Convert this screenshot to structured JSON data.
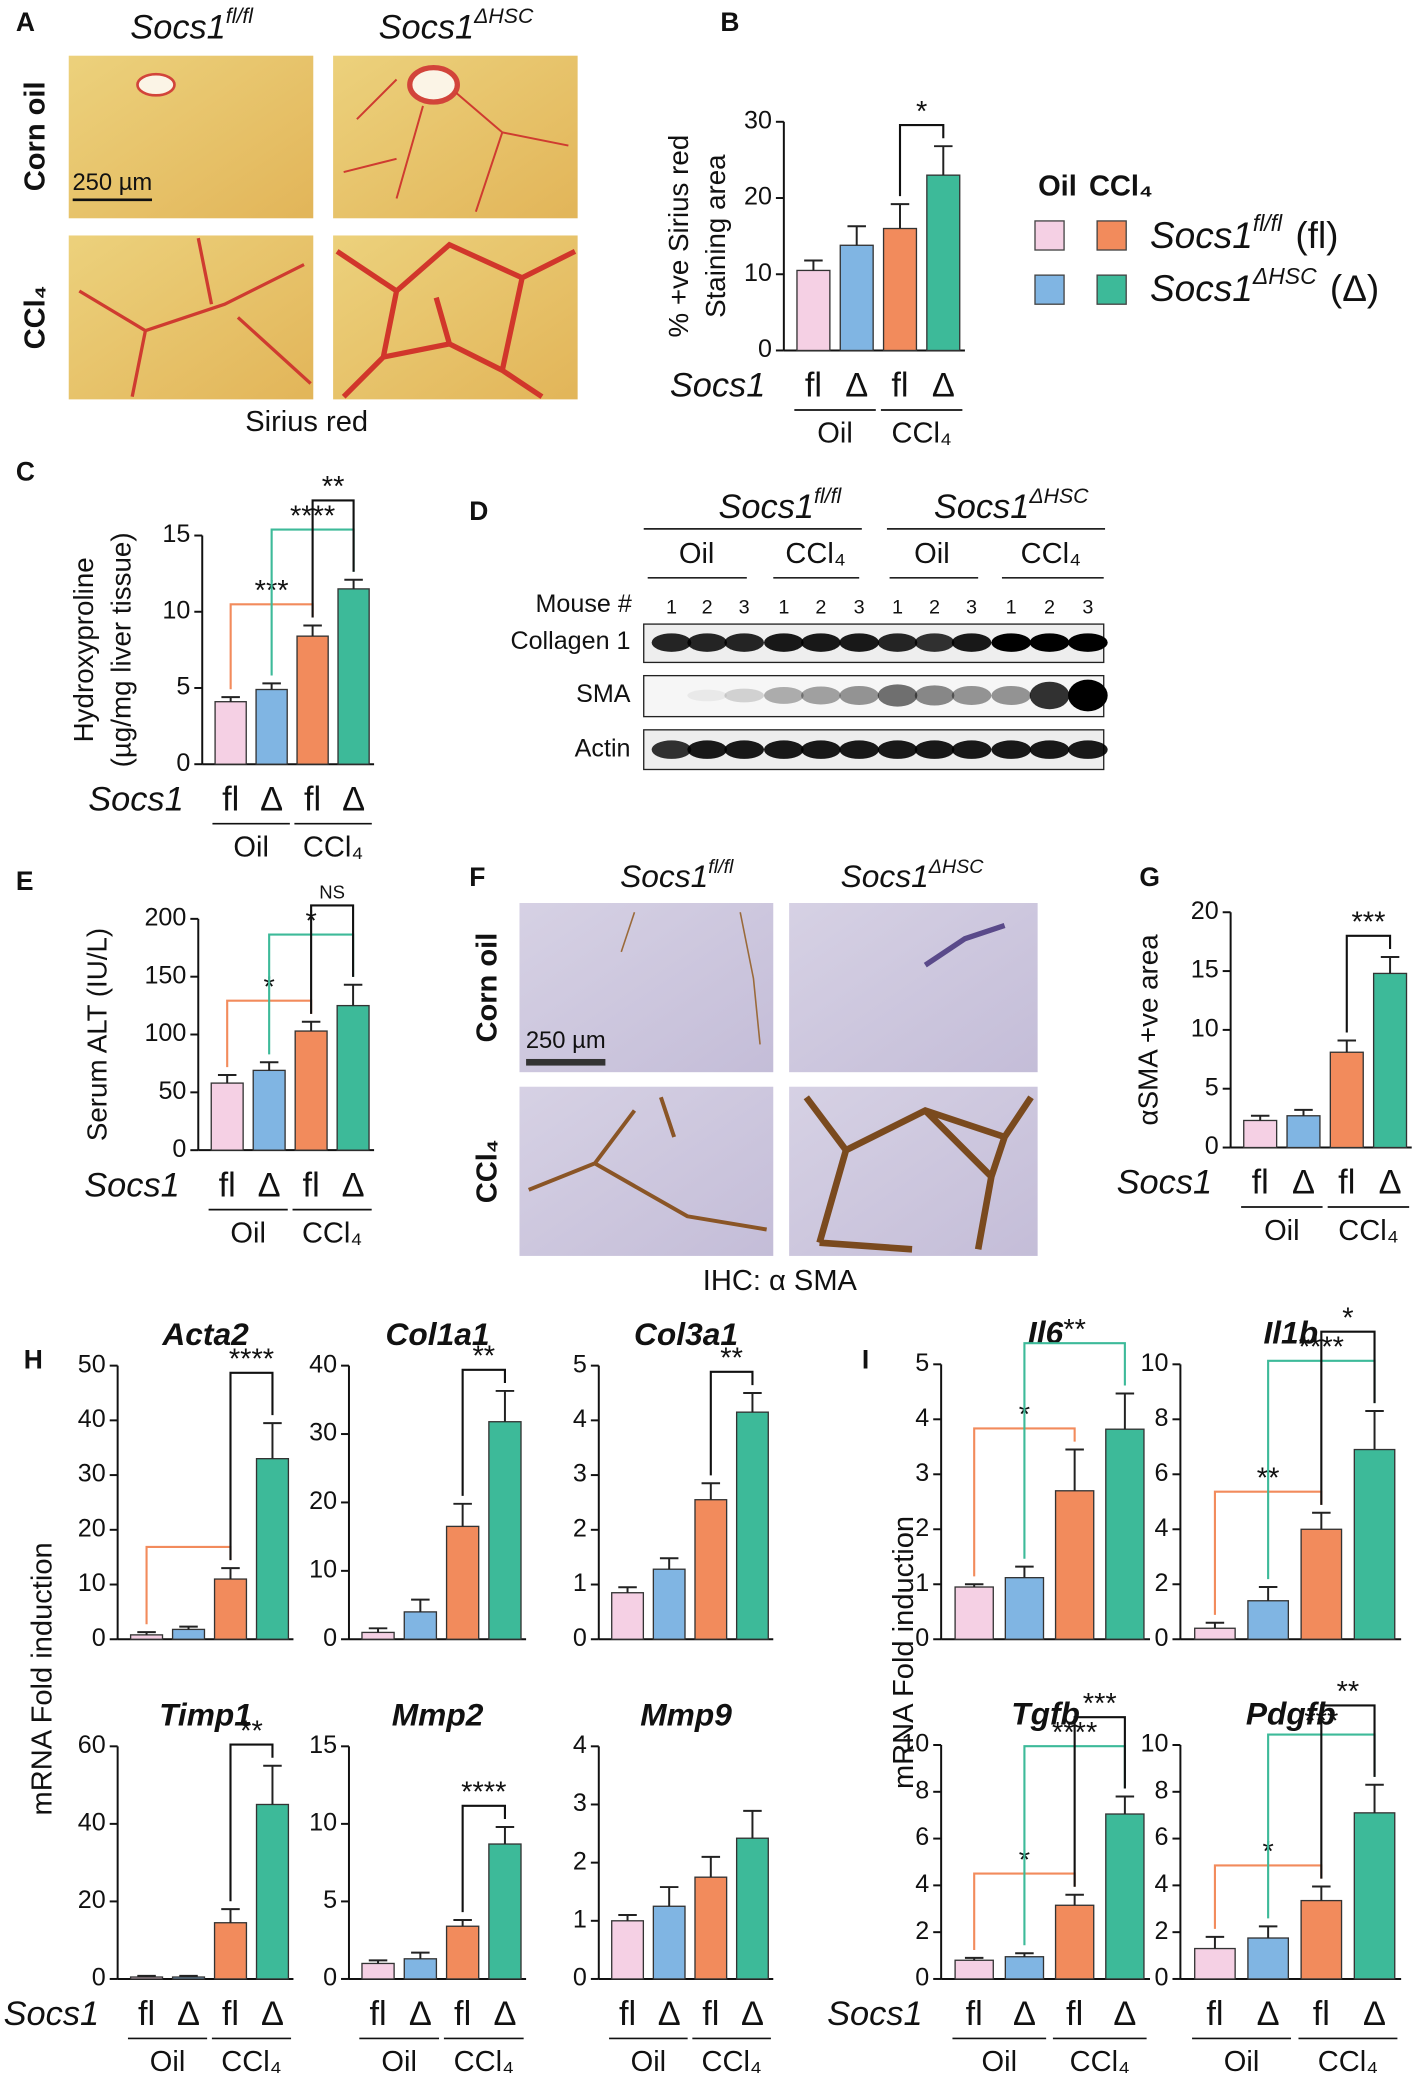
{
  "figure": {
    "panel_labels": [
      "A",
      "B",
      "C",
      "D",
      "E",
      "F",
      "G",
      "H",
      "I"
    ],
    "genotypes": [
      {
        "gene": "Socs1",
        "sup": "fl/fl",
        "abbr": "(fl)"
      },
      {
        "gene": "Socs1",
        "sup": "ΔHSC",
        "abbr": "(Δ)"
      }
    ],
    "treatments": [
      "Corn oil",
      "CCl₄"
    ],
    "scale_bar": "250 µm",
    "a_caption": "Sirius red",
    "legend_headers": [
      "Oil",
      "CCl₄"
    ],
    "blot": {
      "groups": [
        "Oil",
        "CCl₄",
        "Oil",
        "CCl₄"
      ],
      "mouse_label": "Mouse #",
      "mouse_numbers": [
        "1",
        "2",
        "3",
        "1",
        "2",
        "3",
        "1",
        "2",
        "3",
        "1",
        "2",
        "3"
      ],
      "rows": [
        "Collagen 1",
        "SMA",
        "Actin"
      ]
    },
    "f_caption": "IHC:  α SMA",
    "mrna_ylabel": "mRNA Fold induction"
  },
  "chart_data": [
    {
      "type": "bar",
      "ylabel": [
        "% +ve Sirius red",
        "Staining area"
      ],
      "xlabel": "Socs1",
      "categories": [
        "fl",
        "Δ",
        "fl",
        "Δ"
      ],
      "groups": [
        "Oil",
        "CCl₄"
      ],
      "values": [
        10.5,
        13.8,
        16,
        23
      ],
      "errors": [
        1.3,
        2.5,
        3.2,
        3.8
      ],
      "colors": [
        "#f5d0e4",
        "#80b5e3",
        "#f28b5c",
        "#3dba99"
      ],
      "ylim": [
        0,
        30
      ],
      "yticks": [
        0,
        10,
        20,
        30
      ],
      "annotations": [
        {
          "text": "*",
          "from": 2,
          "to": 3,
          "color": "#111111"
        }
      ]
    },
    {
      "type": "bar",
      "ylabel": [
        "Hydroxyproline",
        "(µg/mg liver tissue)"
      ],
      "xlabel": "Socs1",
      "categories": [
        "fl",
        "Δ",
        "fl",
        "Δ"
      ],
      "groups": [
        "Oil",
        "CCl₄"
      ],
      "values": [
        4.1,
        4.9,
        8.4,
        11.5
      ],
      "errors": [
        0.3,
        0.4,
        0.7,
        0.6
      ],
      "colors": [
        "#f5d0e4",
        "#80b5e3",
        "#f28b5c",
        "#3dba99"
      ],
      "ylim": [
        0,
        15
      ],
      "yticks": [
        0,
        5,
        10,
        15
      ],
      "annotations": [
        {
          "text": "***",
          "from": 0,
          "to": 2,
          "color": "#f28b5c"
        },
        {
          "text": "****",
          "from": 1,
          "to": 3,
          "color": "#3dba99"
        },
        {
          "text": "**",
          "from": 2,
          "to": 3,
          "color": "#111111"
        }
      ]
    },
    {
      "type": "bar",
      "ylabel": [
        "Serum ALT (IU/L)"
      ],
      "xlabel": "Socs1",
      "categories": [
        "fl",
        "Δ",
        "fl",
        "Δ"
      ],
      "groups": [
        "Oil",
        "CCl₄"
      ],
      "values": [
        58,
        69,
        103,
        125
      ],
      "errors": [
        7,
        7,
        8,
        18
      ],
      "colors": [
        "#f5d0e4",
        "#80b5e3",
        "#f28b5c",
        "#3dba99"
      ],
      "ylim": [
        0,
        200
      ],
      "yticks": [
        0,
        50,
        100,
        150,
        200
      ],
      "annotations": [
        {
          "text": "*",
          "from": 0,
          "to": 2,
          "color": "#f28b5c"
        },
        {
          "text": "*",
          "from": 1,
          "to": 3,
          "color": "#3dba99"
        },
        {
          "text": "NS",
          "from": 2,
          "to": 3,
          "color": "#111111"
        }
      ]
    },
    {
      "type": "bar",
      "ylabel": [
        "αSMA    +ve area"
      ],
      "xlabel": "Socs1",
      "categories": [
        "fl",
        "Δ",
        "fl",
        "Δ"
      ],
      "groups": [
        "Oil",
        "CCl₄"
      ],
      "values": [
        2.3,
        2.7,
        8.1,
        14.8
      ],
      "errors": [
        0.4,
        0.5,
        1,
        1.4
      ],
      "colors": [
        "#f5d0e4",
        "#80b5e3",
        "#f28b5c",
        "#3dba99"
      ],
      "ylim": [
        0,
        20
      ],
      "yticks": [
        0,
        5,
        10,
        15,
        20
      ],
      "annotations": [
        {
          "text": "***",
          "from": 2,
          "to": 3,
          "color": "#111111"
        }
      ]
    },
    {
      "type": "bar",
      "title": "Acta2",
      "categories": [
        null,
        null,
        null,
        null
      ],
      "values": [
        0.8,
        1.8,
        11,
        33
      ],
      "errors": [
        0.5,
        0.5,
        2,
        6.5
      ],
      "colors": [
        "#f5d0e4",
        "#80b5e3",
        "#f28b5c",
        "#3dba99"
      ],
      "ylim": [
        0,
        50
      ],
      "yticks": [
        0,
        10,
        20,
        30,
        40,
        50
      ],
      "annotations": [
        {
          "from": 0,
          "to": 2,
          "color": "#f28b5c"
        },
        {
          "text": "****",
          "from": 2,
          "to": 3,
          "color": "#111111"
        }
      ]
    },
    {
      "type": "bar",
      "title": "Col1a1",
      "categories": [
        null,
        null,
        null,
        null
      ],
      "values": [
        1,
        4,
        16.5,
        31.8
      ],
      "errors": [
        0.6,
        1.8,
        3.3,
        4.5
      ],
      "colors": [
        "#f5d0e4",
        "#80b5e3",
        "#f28b5c",
        "#3dba99"
      ],
      "ylim": [
        0,
        40
      ],
      "yticks": [
        0,
        10,
        20,
        30,
        40
      ],
      "annotations": [
        {
          "text": "**",
          "from": 2,
          "to": 3,
          "color": "#111111"
        }
      ]
    },
    {
      "type": "bar",
      "title": "Col3a1",
      "categories": [
        null,
        null,
        null,
        null
      ],
      "values": [
        0.85,
        1.28,
        2.55,
        4.15
      ],
      "errors": [
        0.1,
        0.2,
        0.3,
        0.35
      ],
      "colors": [
        "#f5d0e4",
        "#80b5e3",
        "#f28b5c",
        "#3dba99"
      ],
      "ylim": [
        0,
        5
      ],
      "yticks": [
        0,
        1,
        2,
        3,
        4,
        5
      ],
      "annotations": [
        {
          "text": "**",
          "from": 2,
          "to": 3,
          "color": "#111111"
        }
      ]
    },
    {
      "type": "bar",
      "title": "Timp1",
      "xlabel": "Socs1",
      "categories": [
        "fl",
        "Δ",
        "fl",
        "Δ"
      ],
      "groups": [
        "Oil",
        "CCl₄"
      ],
      "values": [
        0.5,
        0.5,
        14.5,
        45
      ],
      "errors": [
        0.3,
        0.3,
        3.5,
        10
      ],
      "colors": [
        "#f5d0e4",
        "#80b5e3",
        "#f28b5c",
        "#3dba99"
      ],
      "ylim": [
        0,
        60
      ],
      "yticks": [
        0,
        20,
        40,
        60
      ],
      "annotations": [
        {
          "text": "**",
          "from": 2,
          "to": 3,
          "color": "#111111"
        }
      ]
    },
    {
      "type": "bar",
      "title": "Mmp2",
      "categories": [
        "fl",
        "Δ",
        "fl",
        "Δ"
      ],
      "groups": [
        "Oil",
        "CCl₄"
      ],
      "values": [
        1,
        1.3,
        3.4,
        8.7
      ],
      "errors": [
        0.2,
        0.4,
        0.4,
        1.1
      ],
      "colors": [
        "#f5d0e4",
        "#80b5e3",
        "#f28b5c",
        "#3dba99"
      ],
      "ylim": [
        0,
        15
      ],
      "yticks": [
        0,
        5,
        10,
        15
      ],
      "annotations": [
        {
          "text": "****",
          "from": 2,
          "to": 3,
          "color": "#111111"
        }
      ]
    },
    {
      "type": "bar",
      "title": "Mmp9",
      "categories": [
        "fl",
        "Δ",
        "fl",
        "Δ"
      ],
      "groups": [
        "Oil",
        "CCl₄"
      ],
      "values": [
        1,
        1.25,
        1.75,
        2.42
      ],
      "errors": [
        0.1,
        0.33,
        0.35,
        0.47
      ],
      "colors": [
        "#f5d0e4",
        "#80b5e3",
        "#f28b5c",
        "#3dba99"
      ],
      "ylim": [
        0,
        4
      ],
      "yticks": [
        0,
        1,
        2,
        3,
        4
      ]
    },
    {
      "type": "bar",
      "title": "Il6",
      "categories": [
        null,
        null,
        null,
        null
      ],
      "values": [
        0.95,
        1.12,
        2.7,
        3.82
      ],
      "errors": [
        0.05,
        0.2,
        0.75,
        0.65
      ],
      "colors": [
        "#f5d0e4",
        "#80b5e3",
        "#f28b5c",
        "#3dba99"
      ],
      "ylim": [
        0,
        5
      ],
      "yticks": [
        0,
        1,
        2,
        3,
        4,
        5
      ],
      "annotations": [
        {
          "text": "*",
          "from": 0,
          "to": 2,
          "color": "#f28b5c"
        },
        {
          "text": "**",
          "from": 1,
          "to": 3,
          "color": "#3dba99"
        }
      ]
    },
    {
      "type": "bar",
      "title": "Il1b",
      "categories": [
        null,
        null,
        null,
        null
      ],
      "values": [
        0.4,
        1.4,
        4,
        6.9
      ],
      "errors": [
        0.2,
        0.5,
        0.6,
        1.4
      ],
      "colors": [
        "#f5d0e4",
        "#80b5e3",
        "#f28b5c",
        "#3dba99"
      ],
      "ylim": [
        0,
        10
      ],
      "yticks": [
        0,
        2,
        4,
        6,
        8,
        10
      ],
      "annotations": [
        {
          "text": "**",
          "from": 0,
          "to": 2,
          "color": "#f28b5c"
        },
        {
          "text": "****",
          "from": 1,
          "to": 3,
          "color": "#3dba99"
        },
        {
          "text": "*",
          "from": 2,
          "to": 3,
          "color": "#111111"
        }
      ]
    },
    {
      "type": "bar",
      "title": "Tgfb",
      "xlabel": "Socs1",
      "categories": [
        "fl",
        "Δ",
        "fl",
        "Δ"
      ],
      "groups": [
        "Oil",
        "CCl₄"
      ],
      "values": [
        0.8,
        0.95,
        3.15,
        7.05
      ],
      "errors": [
        0.1,
        0.15,
        0.45,
        0.75
      ],
      "colors": [
        "#f5d0e4",
        "#80b5e3",
        "#f28b5c",
        "#3dba99"
      ],
      "ylim": [
        0,
        10
      ],
      "yticks": [
        0,
        2,
        4,
        6,
        8,
        10
      ],
      "annotations": [
        {
          "text": "*",
          "from": 0,
          "to": 2,
          "color": "#f28b5c"
        },
        {
          "text": "****",
          "from": 1,
          "to": 3,
          "color": "#3dba99"
        },
        {
          "text": "***",
          "from": 2,
          "to": 3,
          "color": "#111111"
        }
      ]
    },
    {
      "type": "bar",
      "title": "Pdgfb",
      "categories": [
        "fl",
        "Δ",
        "fl",
        "Δ"
      ],
      "groups": [
        "Oil",
        "CCl₄"
      ],
      "values": [
        1.3,
        1.75,
        3.35,
        7.1
      ],
      "errors": [
        0.5,
        0.5,
        0.6,
        1.2
      ],
      "colors": [
        "#f5d0e4",
        "#80b5e3",
        "#f28b5c",
        "#3dba99"
      ],
      "ylim": [
        0,
        10
      ],
      "yticks": [
        0,
        2,
        4,
        6,
        8,
        10
      ],
      "annotations": [
        {
          "text": "*",
          "from": 0,
          "to": 2,
          "color": "#f28b5c"
        },
        {
          "text": "***",
          "from": 1,
          "to": 3,
          "color": "#3dba99"
        },
        {
          "text": "**",
          "from": 2,
          "to": 3,
          "color": "#111111"
        }
      ]
    }
  ]
}
